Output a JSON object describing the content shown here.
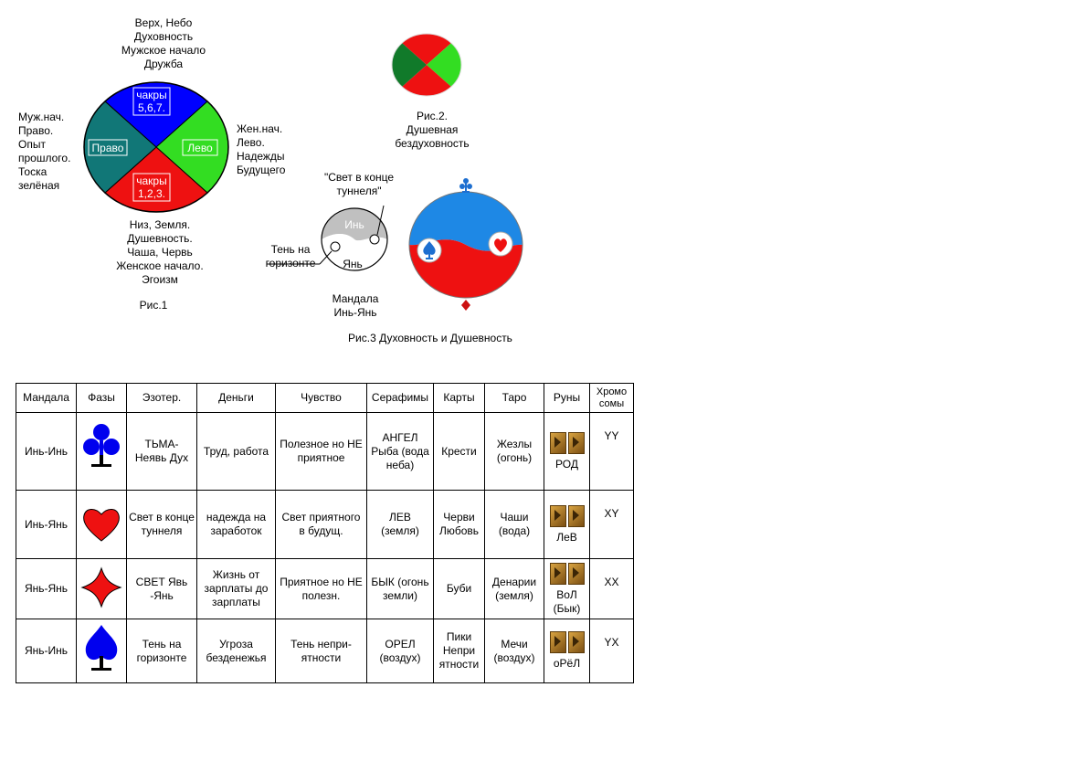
{
  "fig1": {
    "top_label": [
      "Верх, Небо",
      "Духовность",
      "Мужское начало",
      "Дружба"
    ],
    "left_label": [
      "Муж.нач.",
      "Право.",
      "Опыт",
      "прошлого.",
      "Тоска",
      "зелёная"
    ],
    "right_label": [
      "Жен.нач.",
      "Лево.",
      "Надежды",
      "Будущего"
    ],
    "bottom_label": [
      "Низ,  Земля.",
      "Душевность.",
      "Чаша, Червь",
      "Женское начало.",
      "Эгоизм"
    ],
    "sector_top": [
      "чакры",
      "5,6,7."
    ],
    "sector_bottom": [
      "чакры",
      "1,2,3."
    ],
    "sector_left": "Право",
    "sector_right": "Лево",
    "caption": "Рис.1",
    "colors": {
      "top": "#0000ff",
      "right": "#33dd22",
      "bottom": "#ee1111",
      "left": "#117777"
    }
  },
  "fig2": {
    "caption": [
      "Рис.2.",
      "Душевная",
      "бездуховность"
    ],
    "colors": {
      "red": "#ee1111",
      "green": "#33dd22",
      "dark_green": "#117a2a"
    }
  },
  "fig3": {
    "tunnel_label": [
      "\"Свет в конце",
      "туннеля\""
    ],
    "horizon_label": [
      "Тень на",
      "горизонте"
    ],
    "yin": "Инь",
    "yang": "Янь",
    "mandala_label": [
      "Мандала",
      "Инь-Янь"
    ],
    "caption": "Рис.3 Духовность и Душевность",
    "colors": {
      "blue": "#1e88e5",
      "red": "#ee1111",
      "gray": "#c0c0c0"
    }
  },
  "table": {
    "headers": [
      "Мандала",
      "Фазы",
      "Эзотер.",
      "Деньги",
      "Чувство",
      "Серафимы",
      "Карты",
      "Таро",
      "Руны",
      "Хромо сомы"
    ],
    "rows": [
      {
        "mandala": "Инь-Инь",
        "phase_icon": "club-icon",
        "phase_color": "#0000ee",
        "esoteric": "ТЬМА- Неявь Дух",
        "money": "Труд, работа",
        "feeling": "Полезное но НЕ приятное",
        "seraphim": "АНГЕЛ Рыба (вода неба)",
        "cards": "Крести",
        "tarot": "Жезлы (огонь)",
        "rune": "РОД",
        "chromosome": "YY"
      },
      {
        "mandala": "Инь-Янь",
        "phase_icon": "heart-icon",
        "phase_color": "#ee1111",
        "esoteric": "Свет в конце туннеля",
        "money": "надежда на заработок",
        "feeling": "Свет приятного в будущ.",
        "seraphim": "ЛЕВ (земля)",
        "cards": "Черви Любовь",
        "tarot": "Чаши (вода)",
        "rune": "ЛеВ",
        "chromosome": "XY"
      },
      {
        "mandala": "Янь-Янь",
        "phase_icon": "diamond-icon",
        "phase_color": "#ee1111",
        "esoteric": "СВЕТ Явь -Янь",
        "money": "Жизнь от зарплаты до зарплаты",
        "feeling": "Приятное но НЕ полезн.",
        "seraphim": "БЫК (огонь земли)",
        "cards": "Буби",
        "tarot": "Денарии (земля)",
        "rune": "ВоЛ (Бык)",
        "chromosome": "XX"
      },
      {
        "mandala": "Янь-Инь",
        "phase_icon": "spade-icon",
        "phase_color": "#0000ee",
        "esoteric": "Тень на горизонте",
        "money": "Угроза безденежья",
        "feeling": "Тень непри- ятности",
        "seraphim": "ОРЕЛ (воздух)",
        "cards": "Пики Непри ятности",
        "tarot": "Мечи (воздух)",
        "rune": "оРёЛ",
        "chromosome": "YX"
      }
    ]
  }
}
